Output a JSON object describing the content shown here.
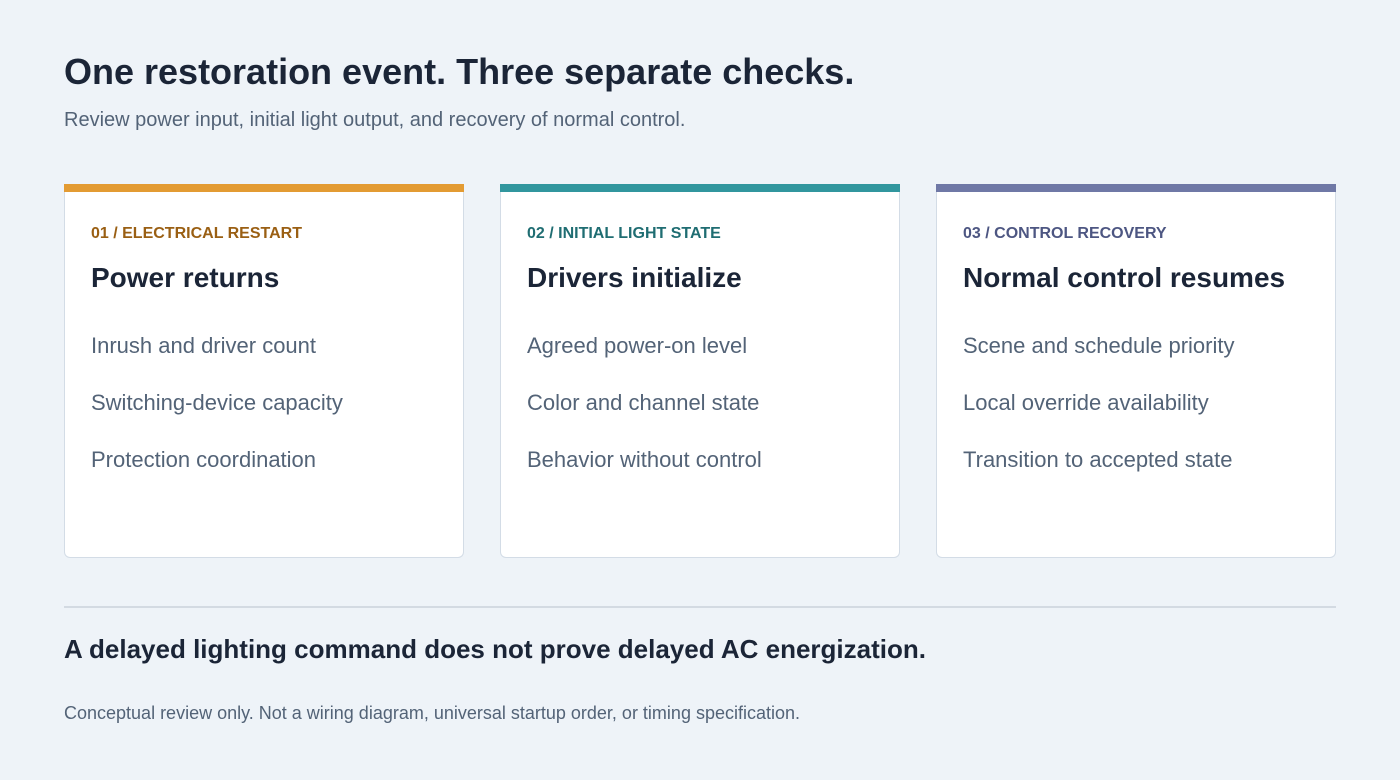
{
  "header": {
    "title": "One restoration event. Three separate checks.",
    "subtitle": "Review power input, initial light output, and recovery of normal control."
  },
  "cards": [
    {
      "eyebrow": "01 / ELECTRICAL RESTART",
      "title": "Power returns",
      "accent_color": "#e39b33",
      "eyebrow_color": "#9a5f13",
      "items": [
        "Inrush and driver count",
        "Switching-device capacity",
        "Protection coordination"
      ]
    },
    {
      "eyebrow": "02 / INITIAL LIGHT STATE",
      "title": "Drivers initialize",
      "accent_color": "#31969e",
      "eyebrow_color": "#1f6d72",
      "items": [
        "Agreed power-on level",
        "Color and channel state",
        "Behavior without control"
      ]
    },
    {
      "eyebrow": "03 / CONTROL RECOVERY",
      "title": "Normal control resumes",
      "accent_color": "#6f78a6",
      "eyebrow_color": "#4d5682",
      "items": [
        "Scene and schedule priority",
        "Local override availability",
        "Transition to accepted state"
      ]
    }
  ],
  "footer": {
    "conclusion": "A delayed lighting command does not prove delayed AC energization.",
    "note": "Conceptual review only. Not a wiring diagram, universal startup order, or timing specification."
  }
}
